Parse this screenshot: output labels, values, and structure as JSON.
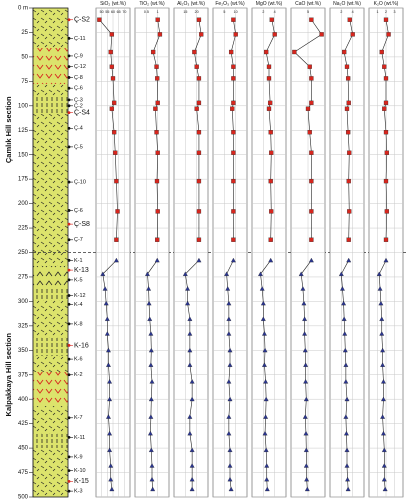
{
  "chart_data": {
    "type": "depth-profile",
    "ylim": [
      0,
      500
    ],
    "yticks": [
      {
        "value": 0,
        "label": "0 m"
      },
      25,
      50,
      75,
      100,
      125,
      150,
      175,
      200,
      225,
      250,
      275,
      300,
      325,
      350,
      375,
      400,
      425,
      450,
      475,
      500
    ],
    "sections": [
      {
        "label": "Çamlık Hill section",
        "depths": [
          12,
          27,
          45,
          60,
          72,
          97,
          103,
          127,
          148,
          177,
          208,
          237
        ]
      },
      {
        "label": "Kalpakkaya Hill section",
        "depths": [
          258,
          272,
          287,
          302,
          318,
          333,
          350,
          365,
          382,
          400,
          418,
          435,
          452,
          468,
          482,
          492
        ]
      }
    ],
    "samples": [
      {
        "label": "Ç-S2",
        "depth": 12,
        "color": "#d7261e"
      },
      {
        "label": "Ç-11",
        "depth": 31,
        "color": "#111111"
      },
      {
        "label": "Ç-9",
        "depth": 49,
        "color": "#111111"
      },
      {
        "label": "Ç-12",
        "depth": 60,
        "color": "#111111"
      },
      {
        "label": "Ç-8",
        "depth": 71,
        "color": "#111111"
      },
      {
        "label": "Ç-6",
        "depth": 82,
        "color": "#111111"
      },
      {
        "label": "Ç-3",
        "depth": 94,
        "color": "#111111"
      },
      {
        "label": "Ç-2",
        "depth": 100,
        "color": "#111111"
      },
      {
        "label": "Ç-S4",
        "depth": 107,
        "color": "#d7261e"
      },
      {
        "label": "Ç-4",
        "depth": 123,
        "color": "#111111"
      },
      {
        "label": "Ç-5",
        "depth": 142,
        "color": "#111111"
      },
      {
        "label": "Ç-10",
        "depth": 178,
        "color": "#111111"
      },
      {
        "label": "Ç-6",
        "depth": 207,
        "color": "#111111"
      },
      {
        "label": "Ç-S8",
        "depth": 221,
        "color": "#d7261e"
      },
      {
        "label": "Ç-7",
        "depth": 237,
        "color": "#111111"
      },
      {
        "label": "K-1",
        "depth": 258,
        "color": "#111111"
      },
      {
        "label": "K-13",
        "depth": 268,
        "color": "#d7261e"
      },
      {
        "label": "K-5",
        "depth": 278,
        "color": "#111111"
      },
      {
        "label": "K-12",
        "depth": 294,
        "color": "#111111"
      },
      {
        "label": "K-4",
        "depth": 303,
        "color": "#111111"
      },
      {
        "label": "K-8",
        "depth": 323,
        "color": "#111111"
      },
      {
        "label": "K-16",
        "depth": 345,
        "color": "#d7261e"
      },
      {
        "label": "K-6",
        "depth": 359,
        "color": "#111111"
      },
      {
        "label": "K-2",
        "depth": 375,
        "color": "#111111"
      },
      {
        "label": "K-7",
        "depth": 419,
        "color": "#111111"
      },
      {
        "label": "K-11",
        "depth": 439,
        "color": "#111111"
      },
      {
        "label": "K-9",
        "depth": 459,
        "color": "#111111"
      },
      {
        "label": "K-10",
        "depth": 473,
        "color": "#111111"
      },
      {
        "label": "K-15",
        "depth": 484,
        "color": "#d7261e"
      },
      {
        "label": "K-3",
        "depth": 494,
        "color": "#111111"
      }
    ],
    "panels": [
      {
        "title": "SiO₂ (wt.%)",
        "xlim": [
          45,
          75
        ],
        "xticks": [
          50,
          55,
          60,
          65,
          70
        ],
        "series": [
          {
            "color": "#d7261e",
            "marker": "square",
            "values": [
              48,
              59,
              58,
              59,
              60,
              61,
              59,
              61,
              62,
              63,
              64,
              63
            ]
          },
          {
            "color": "#2a3590",
            "marker": "triangle",
            "values": [
              63,
              51,
              53,
              54,
              55,
              55,
              56,
              56,
              57,
              57,
              56,
              57,
              57,
              58,
              58,
              59
            ]
          }
        ]
      },
      {
        "title": "TiO₂ (wt.%)",
        "xlim": [
          0,
          1.5
        ],
        "xticks": [
          0.5,
          1
        ],
        "series": [
          {
            "color": "#d7261e",
            "marker": "square",
            "values": [
              1.0,
              1.1,
              0.8,
              0.95,
              0.98,
              1.0,
              0.9,
              0.95,
              1.0,
              0.97,
              1.0,
              0.98
            ]
          },
          {
            "color": "#2a3590",
            "marker": "triangle",
            "values": [
              0.98,
              0.55,
              0.6,
              0.62,
              0.65,
              0.7,
              0.72,
              0.7,
              0.75,
              0.72,
              0.7,
              0.68,
              0.72,
              0.75,
              0.75,
              0.78
            ]
          }
        ]
      },
      {
        "title": "Al₂O₃ (wt.%)",
        "xlim": [
          10,
          25
        ],
        "xticks": [
          15,
          20
        ],
        "series": [
          {
            "color": "#d7261e",
            "marker": "square",
            "values": [
              21,
              22,
              19,
              20,
              21,
              21,
              20,
              21,
              21,
              21,
              21,
              21
            ]
          },
          {
            "color": "#2a3590",
            "marker": "triangle",
            "values": [
              21,
              15,
              16,
              16,
              17,
              17,
              17,
              17,
              18,
              18,
              17,
              17,
              18,
              18,
              18,
              18
            ]
          }
        ]
      },
      {
        "title": "Fe₂O₃ (wt.%)",
        "xlim": [
          0,
          15
        ],
        "xticks": [
          5,
          10
        ],
        "series": [
          {
            "color": "#d7261e",
            "marker": "square",
            "values": [
              9,
              10,
              8,
              9,
              9,
              9,
              8.5,
              9,
              9,
              9,
              9,
              9
            ]
          },
          {
            "color": "#2a3590",
            "marker": "triangle",
            "values": [
              9,
              6,
              6.5,
              7,
              7,
              7,
              7.5,
              7.5,
              7,
              7.5,
              7,
              7,
              7.5,
              7.5,
              7.5,
              8
            ]
          }
        ]
      },
      {
        "title": "MgO (wt.%)",
        "xlim": [
          0,
          6
        ],
        "xticks": [
          2,
          4
        ],
        "series": [
          {
            "color": "#d7261e",
            "marker": "square",
            "values": [
              3.5,
              4,
              2.5,
              3,
              3,
              3.2,
              3,
              3.3,
              3.4,
              3.3,
              3.4,
              3.3
            ]
          },
          {
            "color": "#2a3590",
            "marker": "triangle",
            "values": [
              3.3,
              1.5,
              1.8,
              2,
              2,
              2.2,
              2.3,
              2.2,
              2.4,
              2.5,
              2.4,
              2.3,
              2.5,
              2.6,
              2.6,
              2.7
            ]
          }
        ]
      },
      {
        "title": "CaO (wt.%)",
        "xlim": [
          0,
          10
        ],
        "xticks": [
          5
        ],
        "series": [
          {
            "color": "#d7261e",
            "marker": "square",
            "values": [
              6,
              9,
              1,
              5.5,
              6,
              6,
              5,
              5.5,
              6,
              6,
              6,
              6
            ]
          },
          {
            "color": "#2a3590",
            "marker": "triangle",
            "values": [
              6,
              3,
              3.5,
              3.8,
              4,
              4,
              4.2,
              4.3,
              4.3,
              4.5,
              4.2,
              4.4,
              4.5,
              4.5,
              4.6,
              4.8
            ]
          }
        ]
      },
      {
        "title": "Na₂O (wt.%)",
        "xlim": [
          0,
          6
        ],
        "xticks": [
          2,
          4
        ],
        "series": [
          {
            "color": "#d7261e",
            "marker": "square",
            "values": [
              3.5,
              4,
              2.5,
              3,
              3.2,
              3.3,
              3,
              3.2,
              3.4,
              3.3,
              3.4,
              3.3
            ]
          },
          {
            "color": "#2a3590",
            "marker": "triangle",
            "values": [
              3.3,
              2,
              2.2,
              2.4,
              2.5,
              2.6,
              2.7,
              2.8,
              2.8,
              3,
              2.8,
              2.9,
              3,
              3,
              3.1,
              3.2
            ]
          }
        ]
      },
      {
        "title": "K₂O (wt.%)",
        "xlim": [
          0,
          4
        ],
        "xticks": [
          1,
          2,
          3
        ],
        "series": [
          {
            "color": "#d7261e",
            "marker": "square",
            "values": [
              2,
              2.3,
              1.5,
              1.8,
              2,
              2,
              1.8,
              2,
              2.1,
              2,
              2.1,
              2
            ]
          },
          {
            "color": "#2a3590",
            "marker": "triangle",
            "values": [
              2,
              1.2,
              1.3,
              1.4,
              1.5,
              1.5,
              1.6,
              1.6,
              1.7,
              1.7,
              1.6,
              1.7,
              1.8,
              1.8,
              1.8,
              1.9
            ]
          }
        ]
      }
    ]
  }
}
